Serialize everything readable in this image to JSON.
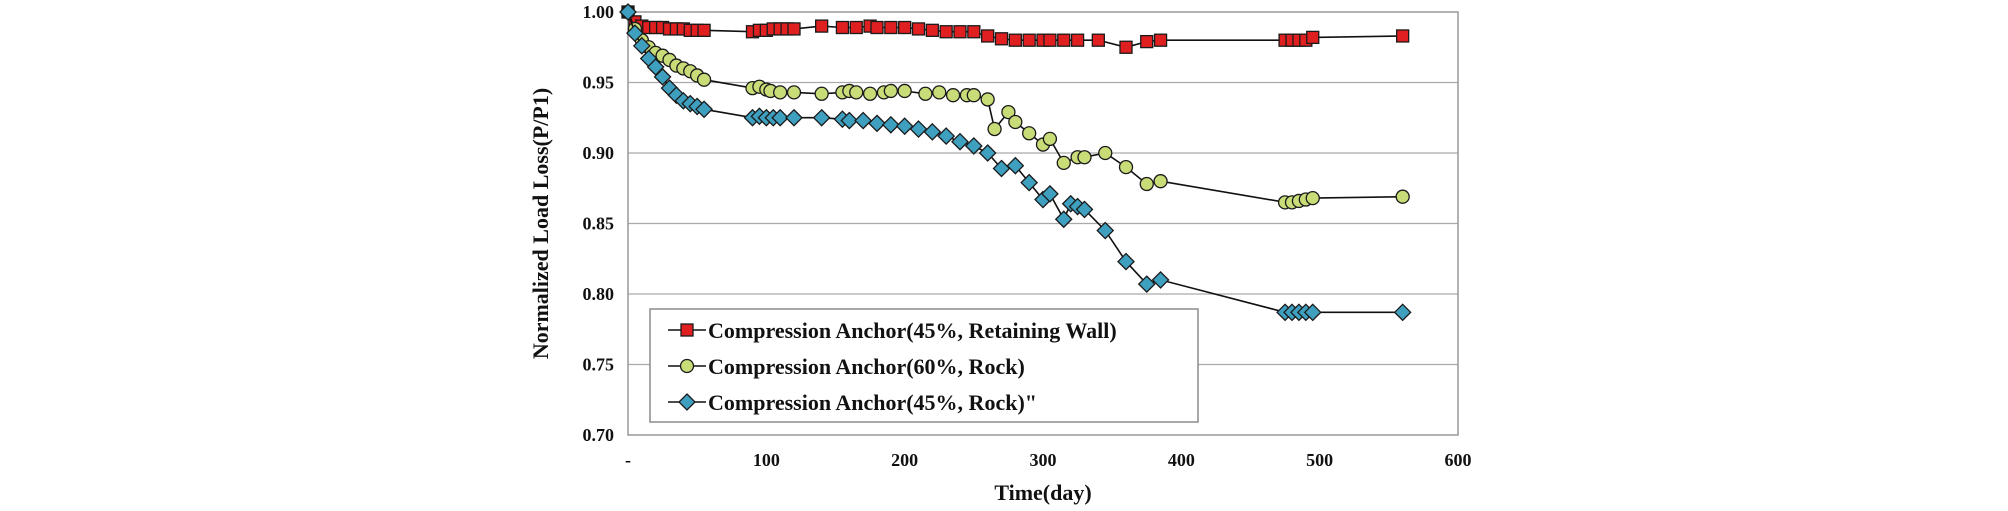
{
  "chart_data": {
    "type": "line",
    "xlabel": "Time(day)",
    "ylabel": "Normalized Load Loss(P/P1)",
    "xlim": [
      0,
      600
    ],
    "ylim": [
      0.7,
      1.0
    ],
    "x_ticks": [
      "-",
      "100",
      "200",
      "300",
      "400",
      "500",
      "600"
    ],
    "y_ticks": [
      "0.70",
      "0.75",
      "0.80",
      "0.85",
      "0.90",
      "0.95",
      "1.00"
    ],
    "grid": "horizontal",
    "legend_position": "bottom-left",
    "series": [
      {
        "name": "Compression Anchor(45%, Retaining Wall)",
        "marker": "square",
        "color": "#e02020",
        "points": [
          [
            0,
            1.0
          ],
          [
            5,
            0.993
          ],
          [
            10,
            0.99
          ],
          [
            15,
            0.989
          ],
          [
            20,
            0.989
          ],
          [
            25,
            0.989
          ],
          [
            30,
            0.988
          ],
          [
            35,
            0.988
          ],
          [
            40,
            0.988
          ],
          [
            45,
            0.987
          ],
          [
            50,
            0.987
          ],
          [
            55,
            0.987
          ],
          [
            90,
            0.986
          ],
          [
            95,
            0.987
          ],
          [
            100,
            0.987
          ],
          [
            105,
            0.988
          ],
          [
            110,
            0.988
          ],
          [
            115,
            0.988
          ],
          [
            120,
            0.988
          ],
          [
            140,
            0.99
          ],
          [
            155,
            0.989
          ],
          [
            165,
            0.989
          ],
          [
            175,
            0.99
          ],
          [
            180,
            0.989
          ],
          [
            190,
            0.989
          ],
          [
            200,
            0.989
          ],
          [
            210,
            0.988
          ],
          [
            220,
            0.987
          ],
          [
            230,
            0.986
          ],
          [
            240,
            0.986
          ],
          [
            250,
            0.986
          ],
          [
            260,
            0.983
          ],
          [
            270,
            0.981
          ],
          [
            280,
            0.98
          ],
          [
            290,
            0.98
          ],
          [
            300,
            0.98
          ],
          [
            305,
            0.98
          ],
          [
            315,
            0.98
          ],
          [
            325,
            0.98
          ],
          [
            340,
            0.98
          ],
          [
            360,
            0.975
          ],
          [
            375,
            0.979
          ],
          [
            385,
            0.98
          ],
          [
            475,
            0.98
          ],
          [
            480,
            0.98
          ],
          [
            485,
            0.98
          ],
          [
            490,
            0.98
          ],
          [
            495,
            0.982
          ],
          [
            560,
            0.983
          ]
        ]
      },
      {
        "name": "Compression Anchor(60%, Rock)",
        "marker": "circle",
        "color": "#c8dc78",
        "points": [
          [
            0,
            1.0
          ],
          [
            5,
            0.988
          ],
          [
            10,
            0.98
          ],
          [
            15,
            0.975
          ],
          [
            20,
            0.971
          ],
          [
            25,
            0.969
          ],
          [
            30,
            0.966
          ],
          [
            35,
            0.962
          ],
          [
            40,
            0.96
          ],
          [
            45,
            0.958
          ],
          [
            50,
            0.955
          ],
          [
            55,
            0.952
          ],
          [
            90,
            0.946
          ],
          [
            95,
            0.947
          ],
          [
            100,
            0.945
          ],
          [
            103,
            0.944
          ],
          [
            110,
            0.943
          ],
          [
            120,
            0.943
          ],
          [
            140,
            0.942
          ],
          [
            155,
            0.943
          ],
          [
            160,
            0.944
          ],
          [
            165,
            0.943
          ],
          [
            175,
            0.942
          ],
          [
            185,
            0.943
          ],
          [
            190,
            0.944
          ],
          [
            200,
            0.944
          ],
          [
            215,
            0.942
          ],
          [
            225,
            0.943
          ],
          [
            235,
            0.941
          ],
          [
            245,
            0.941
          ],
          [
            250,
            0.941
          ],
          [
            260,
            0.938
          ],
          [
            265,
            0.917
          ],
          [
            275,
            0.929
          ],
          [
            280,
            0.922
          ],
          [
            290,
            0.914
          ],
          [
            300,
            0.906
          ],
          [
            305,
            0.91
          ],
          [
            315,
            0.893
          ],
          [
            325,
            0.897
          ],
          [
            330,
            0.897
          ],
          [
            345,
            0.9
          ],
          [
            360,
            0.89
          ],
          [
            375,
            0.878
          ],
          [
            385,
            0.88
          ],
          [
            475,
            0.865
          ],
          [
            480,
            0.865
          ],
          [
            485,
            0.866
          ],
          [
            490,
            0.867
          ],
          [
            495,
            0.868
          ],
          [
            560,
            0.869
          ]
        ]
      },
      {
        "name": "Compression Anchor(45%, Rock)\"",
        "marker": "diamond",
        "color": "#3f9fbf",
        "points": [
          [
            0,
            1.0
          ],
          [
            5,
            0.985
          ],
          [
            10,
            0.976
          ],
          [
            15,
            0.967
          ],
          [
            20,
            0.961
          ],
          [
            25,
            0.954
          ],
          [
            30,
            0.946
          ],
          [
            35,
            0.941
          ],
          [
            40,
            0.937
          ],
          [
            45,
            0.935
          ],
          [
            50,
            0.933
          ],
          [
            55,
            0.931
          ],
          [
            90,
            0.925
          ],
          [
            95,
            0.926
          ],
          [
            100,
            0.925
          ],
          [
            105,
            0.925
          ],
          [
            110,
            0.925
          ],
          [
            120,
            0.925
          ],
          [
            140,
            0.925
          ],
          [
            155,
            0.924
          ],
          [
            160,
            0.923
          ],
          [
            170,
            0.923
          ],
          [
            180,
            0.921
          ],
          [
            190,
            0.92
          ],
          [
            200,
            0.919
          ],
          [
            210,
            0.917
          ],
          [
            220,
            0.915
          ],
          [
            230,
            0.912
          ],
          [
            240,
            0.908
          ],
          [
            250,
            0.905
          ],
          [
            260,
            0.9
          ],
          [
            270,
            0.889
          ],
          [
            280,
            0.891
          ],
          [
            290,
            0.879
          ],
          [
            300,
            0.867
          ],
          [
            305,
            0.871
          ],
          [
            315,
            0.853
          ],
          [
            320,
            0.864
          ],
          [
            325,
            0.862
          ],
          [
            330,
            0.86
          ],
          [
            345,
            0.845
          ],
          [
            360,
            0.823
          ],
          [
            375,
            0.807
          ],
          [
            385,
            0.81
          ],
          [
            475,
            0.787
          ],
          [
            480,
            0.787
          ],
          [
            485,
            0.787
          ],
          [
            490,
            0.787
          ],
          [
            495,
            0.787
          ],
          [
            560,
            0.787
          ]
        ]
      }
    ]
  }
}
